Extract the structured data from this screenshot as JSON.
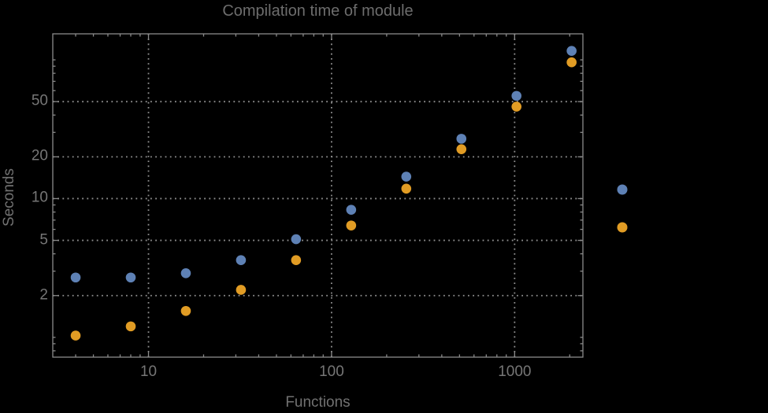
{
  "figure": {
    "background_color": "#000000",
    "frame_color": "#8a8a8a",
    "grid_color": "#8f8f8f",
    "text_color": "#767676",
    "title_color": "#6d6d6d"
  },
  "chart_data": {
    "type": "scatter",
    "title": "Compilation time of module",
    "xlabel": "Functions",
    "ylabel": "Seconds",
    "xscale": "log",
    "yscale": "log",
    "xlim": [
      3.0,
      2360
    ],
    "ylim": [
      0.72,
      154
    ],
    "grid": "dotted",
    "grid_x_values": [
      10,
      100,
      1000
    ],
    "grid_y_values": [
      2,
      5,
      10,
      20,
      50
    ],
    "x": [
      4,
      8,
      16,
      32,
      64,
      128,
      256,
      512,
      1024,
      2048
    ],
    "series": [
      {
        "name": "series-1-blue",
        "color": "#5e81b5",
        "values": [
          2.7,
          2.7,
          2.9,
          3.6,
          5.1,
          8.3,
          14.4,
          27,
          55,
          116
        ]
      },
      {
        "name": "series-2-orange",
        "color": "#e19c24",
        "values": [
          1.03,
          1.2,
          1.55,
          2.2,
          3.6,
          6.4,
          11.8,
          22.7,
          46,
          96
        ]
      }
    ],
    "x_ticks": [
      {
        "value": 10,
        "label": "10"
      },
      {
        "value": 100,
        "label": "100"
      },
      {
        "value": 1000,
        "label": "1000"
      }
    ],
    "x_minor_ticks": [
      4,
      5,
      6,
      7,
      8,
      9,
      20,
      30,
      40,
      50,
      60,
      70,
      80,
      90,
      200,
      300,
      400,
      500,
      600,
      700,
      800,
      900,
      2000
    ],
    "y_ticks": [
      {
        "value": 2,
        "label": "2"
      },
      {
        "value": 5,
        "label": "5"
      },
      {
        "value": 10,
        "label": "10"
      },
      {
        "value": 20,
        "label": "20"
      },
      {
        "value": 50,
        "label": "50"
      }
    ],
    "y_minor_ticks": [
      0.8,
      0.9,
      1,
      3,
      4,
      6,
      7,
      8,
      9,
      30,
      40,
      60,
      70,
      80,
      90,
      100
    ],
    "legend": {
      "position": "right-of-frame",
      "marker_colors": [
        "#5e81b5",
        "#e19c24"
      ]
    }
  }
}
